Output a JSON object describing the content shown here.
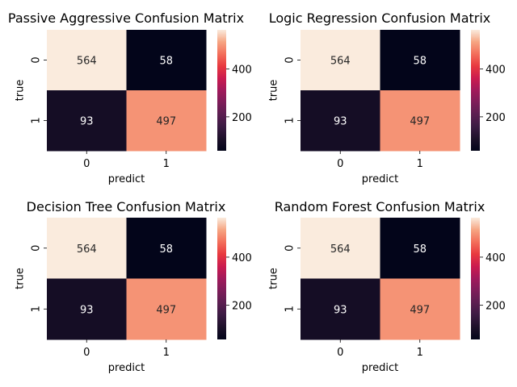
{
  "chart_data": [
    {
      "type": "heatmap",
      "title": "Passive Aggressive Confusion Matrix",
      "xlabel": "predict",
      "ylabel": "true",
      "x_categories": [
        "0",
        "1"
      ],
      "y_categories": [
        "0",
        "1"
      ],
      "values": [
        [
          564,
          58
        ],
        [
          93,
          497
        ]
      ],
      "colorbar_ticks": [
        "400",
        "200"
      ],
      "colorbar_tick_values": [
        400,
        200
      ]
    },
    {
      "type": "heatmap",
      "title": "Logic Regression Confusion Matrix",
      "xlabel": "predict",
      "ylabel": "true",
      "x_categories": [
        "0",
        "1"
      ],
      "y_categories": [
        "0",
        "1"
      ],
      "values": [
        [
          564,
          58
        ],
        [
          93,
          497
        ]
      ],
      "colorbar_ticks": [
        "400",
        "200"
      ],
      "colorbar_tick_values": [
        400,
        200
      ]
    },
    {
      "type": "heatmap",
      "title": "Decision Tree Confusion Matrix",
      "xlabel": "predict",
      "ylabel": "true",
      "x_categories": [
        "0",
        "1"
      ],
      "y_categories": [
        "0",
        "1"
      ],
      "values": [
        [
          564,
          58
        ],
        [
          93,
          497
        ]
      ],
      "colorbar_ticks": [
        "400",
        "200"
      ],
      "colorbar_tick_values": [
        400,
        200
      ]
    },
    {
      "type": "heatmap",
      "title": "Random Forest Confusion Matrix",
      "xlabel": "predict",
      "ylabel": "true",
      "x_categories": [
        "0",
        "1"
      ],
      "y_categories": [
        "0",
        "1"
      ],
      "values": [
        [
          564,
          58
        ],
        [
          93,
          497
        ]
      ],
      "colorbar_ticks": [
        "400",
        "200"
      ],
      "colorbar_tick_values": [
        400,
        200
      ]
    }
  ],
  "colormap": "rocket",
  "colors": {
    "high": "#faebdd",
    "mid_high": "#f4ac87",
    "dark_mid": "#2a1136",
    "low": "#03051a"
  }
}
